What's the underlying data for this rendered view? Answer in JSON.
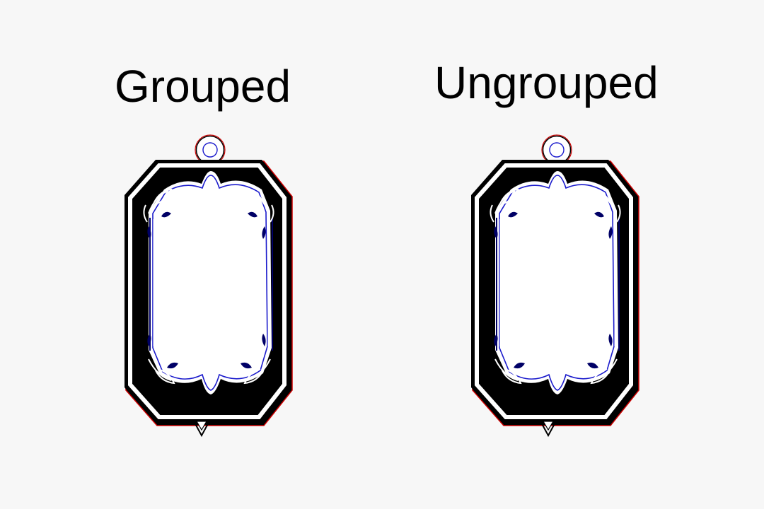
{
  "labels": {
    "left": "Grouped",
    "right": "Ungrouped"
  },
  "colors": {
    "background": "#f7f7f7",
    "frame_fill": "#000000",
    "frame_gap": "#ffffff",
    "outline_red": "#cc0000",
    "outline_blue": "#1a1acc",
    "accent_navy": "#000066"
  },
  "icons": {
    "frame": "ornate-pendant-frame-icon",
    "loop": "hanging-loop-icon",
    "tip": "bottom-tip-icon"
  }
}
